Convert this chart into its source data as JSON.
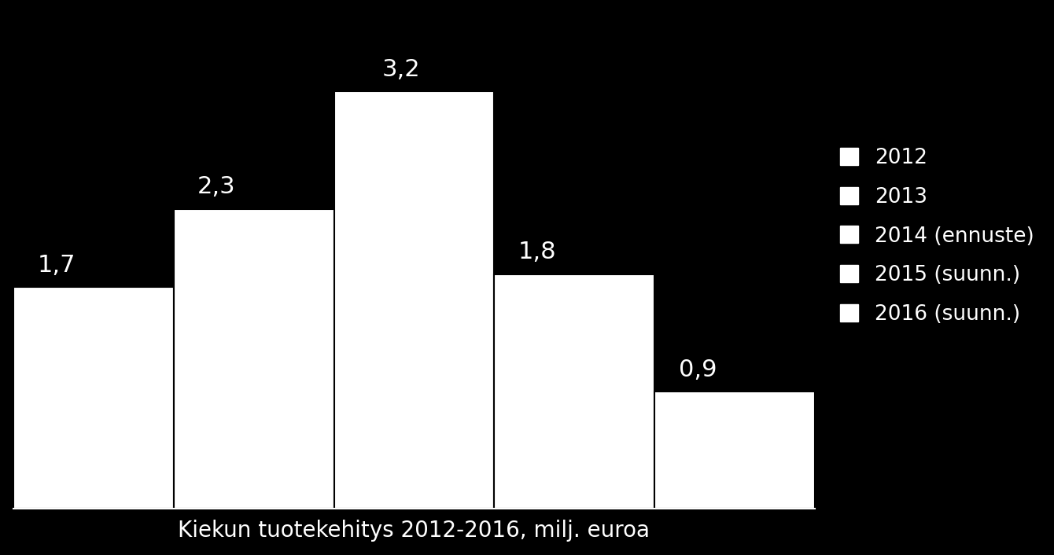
{
  "categories": [
    "2012",
    "2013",
    "2014 (ennuste)",
    "2015 (suunn.)",
    "2016 (suunn.)"
  ],
  "values": [
    1.7,
    2.3,
    3.2,
    1.8,
    0.9
  ],
  "bar_color": "#ffffff",
  "background_color": "#000000",
  "text_color": "#ffffff",
  "grid_color": "#666666",
  "xlabel": "Kiekun tuotekehitys 2012-2016, milj. euroa",
  "xlabel_color": "#ffffff",
  "bar_label_fontsize": 22,
  "legend_labels": [
    "2012",
    "2013",
    "2014 (ennuste)",
    "2015 (suunn.)",
    "2016 (suunn.)"
  ],
  "legend_fontsize": 19,
  "ylim": [
    0,
    3.8
  ],
  "xlabel_fontsize": 20,
  "grid_linewidth": 1.0
}
